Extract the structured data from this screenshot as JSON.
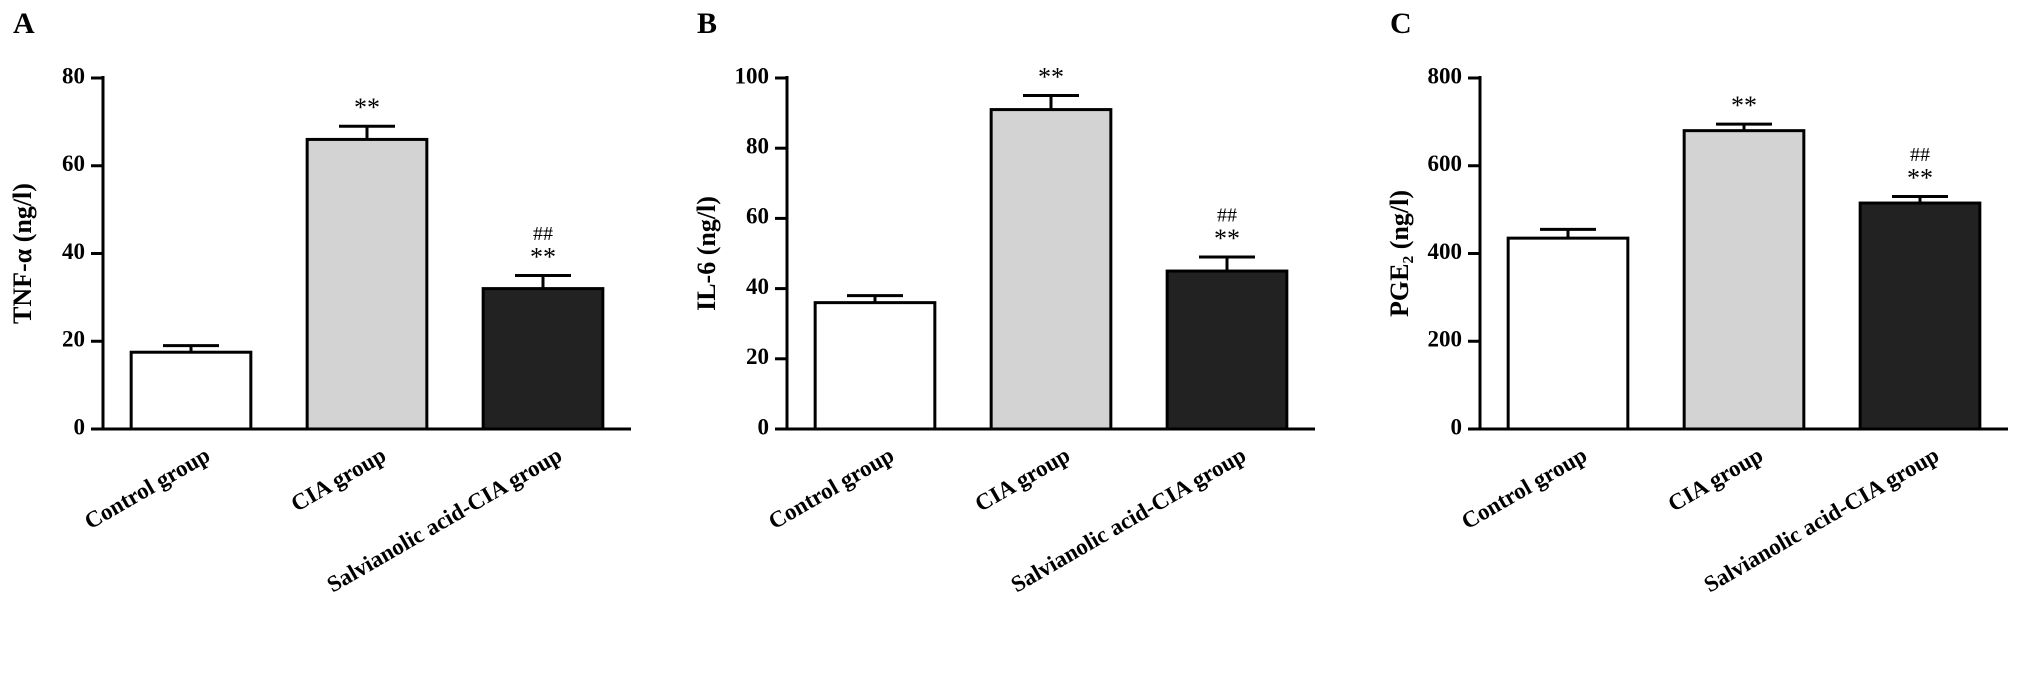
{
  "chart_data": [
    {
      "type": "bar",
      "panel": "A",
      "y_label": "TNF-α (ng/l)",
      "categories": [
        "Control group",
        "CIA group",
        "Salvianolic acid-CIA group"
      ],
      "values": [
        17.5,
        66,
        32
      ],
      "errors": [
        1.5,
        3,
        3
      ],
      "colors": [
        "#ffffff",
        "#d3d3d3",
        "#222222"
      ],
      "annotations": [
        null,
        [
          "**"
        ],
        [
          "##",
          "**"
        ]
      ],
      "ylim": [
        0,
        80
      ],
      "yticks": [
        0,
        20,
        40,
        60,
        80
      ]
    },
    {
      "type": "bar",
      "panel": "B",
      "y_label": "IL-6 (ng/l)",
      "categories": [
        "Control group",
        "CIA group",
        "Salvianolic acid-CIA group"
      ],
      "values": [
        36,
        91,
        45
      ],
      "errors": [
        2,
        4,
        4
      ],
      "colors": [
        "#ffffff",
        "#d3d3d3",
        "#222222"
      ],
      "annotations": [
        null,
        [
          "**"
        ],
        [
          "##",
          "**"
        ]
      ],
      "ylim": [
        0,
        100
      ],
      "yticks": [
        0,
        20,
        40,
        60,
        80,
        100
      ]
    },
    {
      "type": "bar",
      "panel": "C",
      "y_label": "PGE₂ (ng/l)",
      "categories": [
        "Control group",
        "CIA group",
        "Salvianolic acid-CIA group"
      ],
      "values": [
        435,
        680,
        515
      ],
      "errors": [
        20,
        15,
        15
      ],
      "colors": [
        "#ffffff",
        "#d3d3d3",
        "#222222"
      ],
      "annotations": [
        null,
        [
          "**"
        ],
        [
          "##",
          "**"
        ]
      ],
      "ylim": [
        0,
        800
      ],
      "yticks": [
        0,
        200,
        400,
        600,
        800
      ]
    }
  ]
}
